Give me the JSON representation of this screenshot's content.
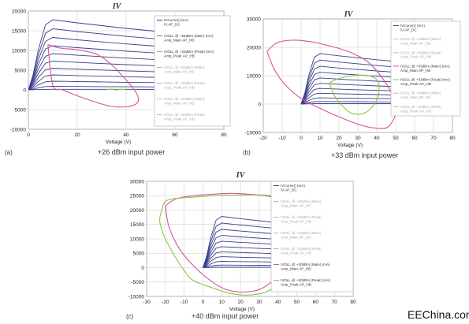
{
  "captions": {
    "a": "+26 dBm input power",
    "b": "+33 dBm input power",
    "c": "+40 dBm input power"
  },
  "tags": {
    "a": "(a)",
    "b": "(b)",
    "c": "(c)"
  },
  "watermark": "EEChina.com",
  "colors": {
    "iv": "#3a3f8a",
    "main": "#d6549a",
    "peak": "#8cc63f",
    "faded": "#b9b9c9",
    "grid": "#c8c8c8"
  },
  "chart_data": [
    {
      "type": "line",
      "title": "IV",
      "xlabel": "Voltage (V)",
      "ylabel": "",
      "xlim": [
        0,
        80
      ],
      "ylim": [
        -10000,
        20000
      ],
      "xticks": [
        "0",
        "20",
        "40",
        "60",
        "80"
      ],
      "yticks": [
        "20000",
        "15000",
        "10000",
        "5000",
        "0",
        "-5000",
        "-10000"
      ],
      "grid": true,
      "legend_position": "right",
      "legend": [
        {
          "lines": [
            "IVCurve() (mA)",
            "IV.AP_DC"
          ],
          "style": "iv"
        },
        {
          "lines": [
            "IVDLL @ +26dBm (Main) (mA)",
            "Amp_Main.AP_HB"
          ],
          "style": "main"
        },
        {
          "lines": [
            "IVDLL @ +26dBm (Peak) (mA)",
            "Amp_Peak.AP_HB"
          ],
          "style": "peak"
        },
        {
          "lines": [
            "IVDLL @ +33dBm (Main)",
            "Amp_Main.AP_HB"
          ],
          "style": "faded"
        },
        {
          "lines": [
            "IVDLL @ +33dBm (Peak)",
            "Amp_Peak.AP_HB"
          ],
          "style": "faded"
        },
        {
          "lines": [
            "IVDLL @ +40dBm (Main)",
            "Amp_Main.AP_HB"
          ],
          "style": "faded"
        },
        {
          "lines": [
            "IVDLL @ +40dBm (Peak)",
            "Amp_Peak.AP_HB"
          ],
          "style": "faded"
        }
      ],
      "iv_curves": {
        "x": [
          0,
          2,
          4,
          7,
          10,
          15,
          20,
          30,
          40,
          50,
          55
        ],
        "y_max": [
          0,
          4000,
          10000,
          16500,
          17800,
          17400,
          17000,
          16300,
          15600,
          15000,
          14700
        ],
        "levels": [
          17800,
          15500,
          13300,
          11200,
          9200,
          7300,
          5500,
          3800,
          2200,
          900,
          150
        ]
      },
      "series": [
        {
          "name": "Main",
          "style": "main",
          "closed": true,
          "x": [
            8,
            13,
            20,
            28,
            34,
            40,
            44,
            45,
            44,
            40,
            34,
            28,
            20,
            14,
            10,
            8
          ],
          "y": [
            11500,
            10600,
            10200,
            9000,
            6400,
            2500,
            -600,
            -2400,
            -3600,
            -4300,
            -4200,
            -3200,
            -1500,
            0,
            1200,
            11500
          ]
        },
        {
          "name": "Peak",
          "style": "peak",
          "closed": false,
          "x": [
            32,
            34,
            36,
            38,
            40
          ],
          "y": [
            100,
            200,
            0,
            150,
            50
          ]
        }
      ]
    },
    {
      "type": "line",
      "title": "IV",
      "xlabel": "Voltage (V)",
      "ylabel": "",
      "xlim": [
        -20,
        80
      ],
      "ylim": [
        -10000,
        30000
      ],
      "xticks": [
        "-20",
        "-10",
        "0",
        "10",
        "20",
        "30",
        "40",
        "50",
        "60",
        "70",
        "80"
      ],
      "yticks": [
        "30000",
        "20000",
        "10000",
        "0",
        "-10000"
      ],
      "grid": true,
      "legend_position": "right",
      "legend": [
        {
          "lines": [
            "IVCurve() (mA)",
            "IV.AP_DC"
          ],
          "style": "iv"
        },
        {
          "lines": [
            "IVDLL @ +26dBm (Main)",
            "Amp_Main.AP_HB"
          ],
          "style": "faded"
        },
        {
          "lines": [
            "IVDLL @ +26dBm (Peak)",
            "Amp_Peak.AP_HB"
          ],
          "style": "faded"
        },
        {
          "lines": [
            "IVDLL @ +33dBm (Main) (mA)",
            "Amp_Main.AP_HB"
          ],
          "style": "main"
        },
        {
          "lines": [
            "IVDLL @ +33dBm (Peak) (mA)",
            "Amp_Peak.AP_HB"
          ],
          "style": "peak"
        },
        {
          "lines": [
            "IVDLL @ +40dBm (Main)",
            "Amp_Main.AP_HB"
          ],
          "style": "faded"
        },
        {
          "lines": [
            "IVDLL @ +40dBm (Peak)",
            "Amp_Peak.AP_HB"
          ],
          "style": "faded"
        }
      ],
      "iv_curves": {
        "x": [
          0,
          2,
          4,
          7,
          10,
          15,
          20,
          30,
          40,
          50,
          55
        ],
        "y_max": [
          0,
          4000,
          10000,
          16500,
          17800,
          17400,
          17000,
          16300,
          15600,
          15000,
          14700
        ],
        "levels": [
          17800,
          15500,
          13300,
          11200,
          9200,
          7300,
          5500,
          3800,
          2200,
          900,
          150
        ]
      },
      "series": [
        {
          "name": "Main",
          "style": "main",
          "closed": true,
          "x": [
            -18,
            -13,
            -5,
            5,
            15,
            25,
            35,
            42,
            48,
            50,
            46,
            40,
            32,
            20,
            10,
            0,
            -8,
            -14,
            -18
          ],
          "y": [
            18500,
            21500,
            22500,
            22000,
            20500,
            18500,
            15000,
            10000,
            3500,
            -3000,
            -8000,
            -8500,
            -7500,
            -4500,
            -1500,
            2000,
            6500,
            12000,
            18500
          ]
        },
        {
          "name": "Peak",
          "style": "peak",
          "closed": true,
          "x": [
            15,
            20,
            28,
            36,
            41,
            40,
            34,
            26,
            18,
            15
          ],
          "y": [
            7500,
            9000,
            10000,
            10000,
            7500,
            1500,
            -3000,
            -3000,
            2500,
            7500
          ]
        }
      ]
    },
    {
      "type": "line",
      "title": "IV",
      "xlabel": "Voltage (V)",
      "ylabel": "",
      "xlim": [
        -30,
        80
      ],
      "ylim": [
        -10000,
        30000
      ],
      "xticks": [
        "-30",
        "-20",
        "-10",
        "0",
        "10",
        "20",
        "30",
        "40",
        "50",
        "60",
        "70",
        "80"
      ],
      "yticks": [
        "30000",
        "25000",
        "20000",
        "15000",
        "10000",
        "5000",
        "0",
        "-5000",
        "-10000"
      ],
      "grid": true,
      "legend_position": "right",
      "legend": [
        {
          "lines": [
            "IVCurve() (mA)",
            "IV.AP_DC"
          ],
          "style": "iv"
        },
        {
          "lines": [
            "IVDLL @ +26dBm (Main)",
            "Amp_Main.AP_HB"
          ],
          "style": "faded"
        },
        {
          "lines": [
            "IVDLL @ +26dBm (Peak)",
            "Amp_Peak.AP_HB"
          ],
          "style": "faded"
        },
        {
          "lines": [
            "IVDLL @ +33dBm (Main)",
            "Amp_Main.AP_HB"
          ],
          "style": "faded"
        },
        {
          "lines": [
            "IVDLL @ +33dBm (Peak)",
            "Amp_Peak.AP_HB"
          ],
          "style": "faded"
        },
        {
          "lines": [
            "IVDLL @ +40dBm (Main) (mA)",
            "Amp_Main.AP_HB"
          ],
          "style": "main"
        },
        {
          "lines": [
            "IVDLL @ +40dBm (Peak) (mA)",
            "Amp_Peak.AP_HB"
          ],
          "style": "peak"
        }
      ],
      "iv_curves": {
        "x": [
          0,
          2,
          4,
          7,
          10,
          15,
          20,
          30,
          40,
          50,
          55
        ],
        "y_max": [
          0,
          4000,
          10000,
          16500,
          17800,
          17400,
          17000,
          16300,
          15600,
          15000,
          14700
        ],
        "levels": [
          17800,
          15500,
          13300,
          11200,
          9200,
          7300,
          5500,
          3800,
          2200,
          900,
          150
        ]
      },
      "series": [
        {
          "name": "Main",
          "style": "main",
          "closed": true,
          "x": [
            -20,
            -14,
            -5,
            5,
            15,
            25,
            35,
            42,
            45,
            44,
            40,
            32,
            22,
            12,
            4,
            -4,
            -12,
            -18,
            -20
          ],
          "y": [
            21500,
            24000,
            25000,
            25500,
            25800,
            25500,
            24800,
            23000,
            18000,
            8000,
            -2000,
            -7000,
            -8500,
            -7500,
            -4500,
            0,
            6000,
            14000,
            21500
          ]
        },
        {
          "name": "Peak",
          "style": "peak",
          "closed": true,
          "x": [
            -22,
            -20,
            -15,
            -5,
            5,
            15,
            25,
            35,
            45,
            50,
            52,
            50,
            45,
            35,
            25,
            15,
            5,
            -5,
            -10,
            -15,
            -20,
            -23,
            -22
          ],
          "y": [
            20000,
            23000,
            24000,
            24500,
            25000,
            25200,
            25300,
            25100,
            24000,
            21000,
            15000,
            5000,
            -3000,
            -8000,
            -9500,
            -9000,
            -7000,
            -4500,
            -1000,
            4000,
            10000,
            16000,
            20000
          ]
        }
      ]
    }
  ]
}
